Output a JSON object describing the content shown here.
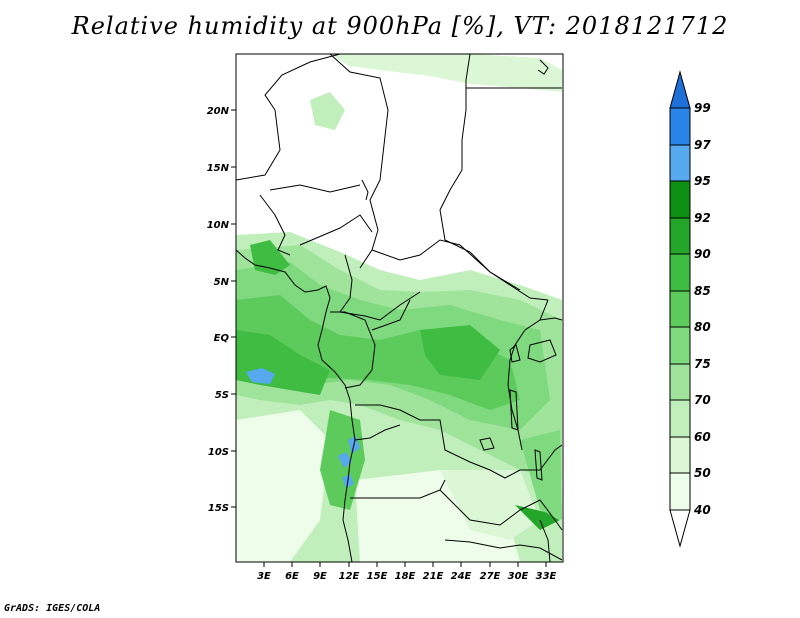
{
  "title": "Relative humidity at 900hPa [%], VT: 2018121712",
  "footer": "GrADS: IGES/COLA",
  "map": {
    "lat_ticks": [
      "20N",
      "15N",
      "10N",
      "5N",
      "EQ",
      "5S",
      "10S",
      "15S"
    ],
    "lon_ticks": [
      "3E",
      "6E",
      "9E",
      "12E",
      "15E",
      "18E",
      "21E",
      "24E",
      "27E",
      "30E",
      "33E"
    ]
  },
  "colorbar": {
    "levels": [
      "99",
      "97",
      "95",
      "92",
      "90",
      "85",
      "80",
      "75",
      "70",
      "60",
      "50",
      "40"
    ],
    "colors": {
      "99": "#1e6fd8",
      "97": "#2a83e6",
      "95": "#56a9ee",
      "92": "#0d8f14",
      "90": "#24a62a",
      "85": "#3fbc42",
      "80": "#5ccb5c",
      "75": "#7fd97e",
      "70": "#a0e49c",
      "60": "#c1efbc",
      "50": "#dbf7d6",
      "40": "#eefcea"
    }
  }
}
